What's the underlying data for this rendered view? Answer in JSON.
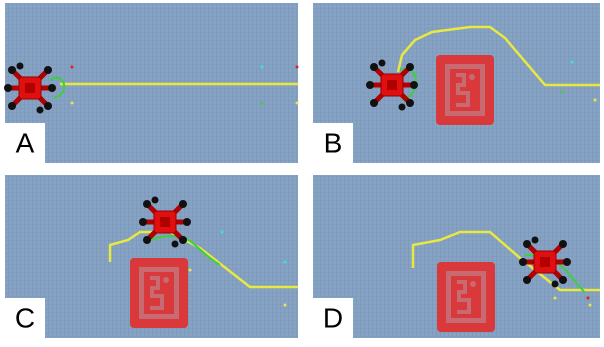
{
  "panels": [
    {
      "label": "A"
    },
    {
      "label": "B"
    },
    {
      "label": "C"
    },
    {
      "label": "D"
    }
  ]
}
